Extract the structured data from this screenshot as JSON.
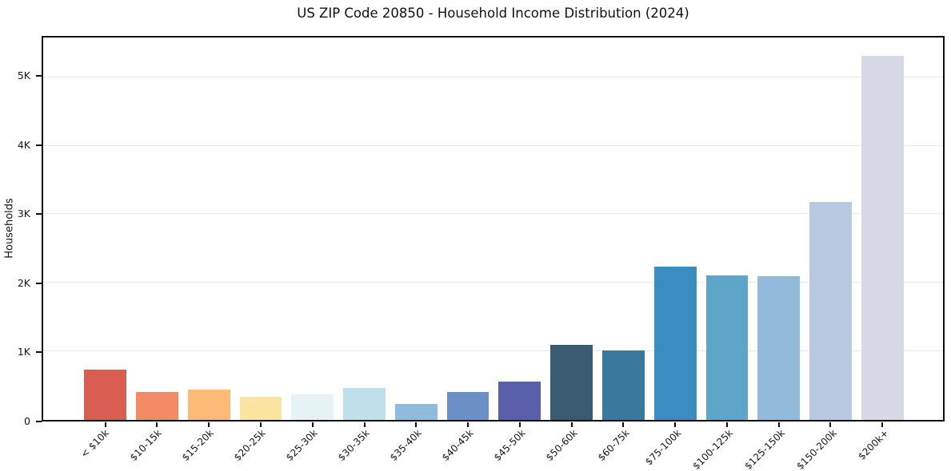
{
  "chart": {
    "title": "US ZIP Code 20850 - Household Income Distribution (2024)",
    "ylabel": "Households"
  },
  "chart_data": {
    "type": "bar",
    "title": "US ZIP Code 20850 - Household Income Distribution (2024)",
    "xlabel": "",
    "ylabel": "Households",
    "categories": [
      "< $10k",
      "$10-15k",
      "$15-20k",
      "$20-25k",
      "$25-30k",
      "$30-35k",
      "$35-40k",
      "$40-45k",
      "$45-50k",
      "$50-60k",
      "$60-75k",
      "$75-100k",
      "$100-125k",
      "$125-150k",
      "$150-200k",
      "$200k+"
    ],
    "values": [
      730,
      410,
      440,
      340,
      375,
      470,
      230,
      410,
      555,
      1100,
      1010,
      2240,
      2110,
      2100,
      3175,
      5310
    ],
    "bar_colors": [
      "#d95d51",
      "#f18a65",
      "#fbba76",
      "#fbe3a2",
      "#e7f2f5",
      "#bfdfea",
      "#90bcdc",
      "#6b90c5",
      "#5a5fa9",
      "#3b5b73",
      "#39799d",
      "#3a8dc0",
      "#5ea5ca",
      "#92badb",
      "#b7c8e1",
      "#d8d9e6"
    ],
    "ylim": [
      0,
      5580
    ],
    "yticks": [
      {
        "label": "0",
        "value": 0
      },
      {
        "label": "1K",
        "value": 1000
      },
      {
        "label": "2K",
        "value": 2000
      },
      {
        "label": "3K",
        "value": 3000
      },
      {
        "label": "4K",
        "value": 4000
      },
      {
        "label": "5K",
        "value": 5000
      }
    ],
    "grid": "horizontal",
    "legend": "none",
    "plot_bg": "#ffffff",
    "spine_color": "#0d0d0d"
  }
}
